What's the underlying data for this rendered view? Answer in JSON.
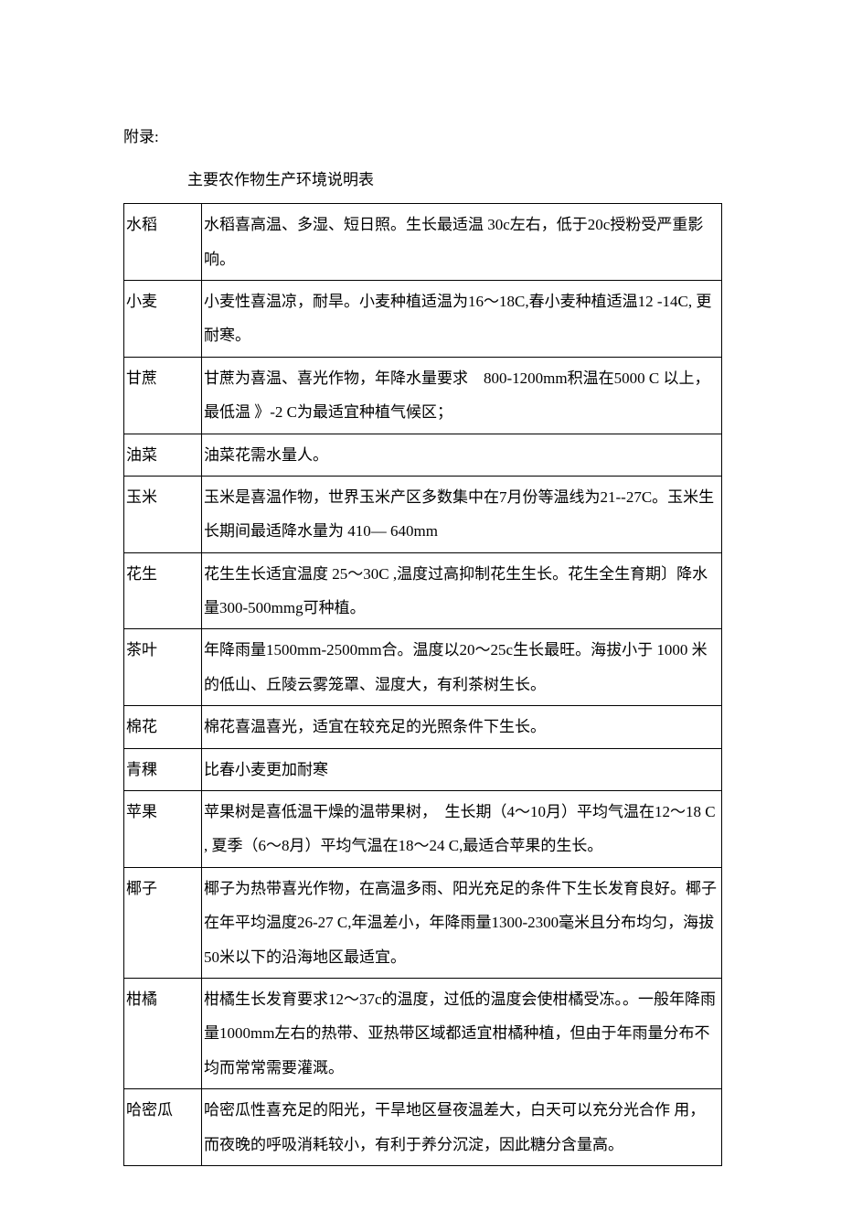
{
  "prefix": "附录:",
  "title": "主要农作物生产环境说明表",
  "rows": [
    {
      "crop": "水稻",
      "desc": "水稻喜高温、多湿、短日照。生长最适温 30c左右，低于20c授粉受严重影响。"
    },
    {
      "crop": "小麦",
      "desc": "小麦性喜温凉，耐旱。小麦种植适温为16〜18C,春小麦种植适温12 -14C, 更耐寒。"
    },
    {
      "crop": "甘蔗",
      "desc": "甘蔗为喜温、喜光作物，年降水量要求　800-1200mm积温在5000 C 以上，最低温 》-2 C为最适宜种植气候区；"
    },
    {
      "crop": "油菜",
      "desc": "油菜花需水量人。"
    },
    {
      "crop": "玉米",
      "desc": "玉米是喜温作物，世界玉米产区多数集中在7月份等温线为21--27C。玉米生长期间最适降水量为 410— 640mm"
    },
    {
      "crop": "花生",
      "desc": "花生生长适宜温度 25〜30C ,温度过高抑制花生生长。花生全生育期〕降水量300-500mmg可种植。"
    },
    {
      "crop": "茶叶",
      "desc": "年降雨量1500mm-2500mm合。温度以20〜25c生长最旺。海拔小于 1000 米的低山、丘陵云雾笼罩、湿度大，有利茶树生长。"
    },
    {
      "crop": "棉花",
      "desc": "棉花喜温喜光，适宜在较充足的光照条件下生长。"
    },
    {
      "crop": "青稞",
      "desc": "比春小麦更加耐寒"
    },
    {
      "crop": "苹果",
      "desc": "苹果树是喜低温干燥的温带果树，　生长期（4〜10月）平均气温在12〜18 C , 夏季（6〜8月）平均气温在18〜24 C,最适合苹果的生长。"
    },
    {
      "crop": "椰子",
      "desc": "椰子为热带喜光作物，在高温多雨、阳光充足的条件下生长发育良好。椰子在年平均温度26-27 C,年温差小，年降雨量1300-2300毫米且分布均匀，海拔50米以下的沿海地区最适宜。"
    },
    {
      "crop": "柑橘",
      "desc": "柑橘生长发育要求12〜37c的温度，过低的温度会使柑橘受冻。。一般年降雨量1000mm左右的热带、亚热带区域都适宜柑橘种植，但由于年雨量分布不均而常常需要灌溉。"
    },
    {
      "crop": "哈密瓜",
      "desc": "哈密瓜性喜充足的阳光，干旱地区昼夜温差大，白天可以充分光合作 用，而夜晚的呼吸消耗较小，有利于养分沉淀，因此糖分含量高。"
    }
  ]
}
